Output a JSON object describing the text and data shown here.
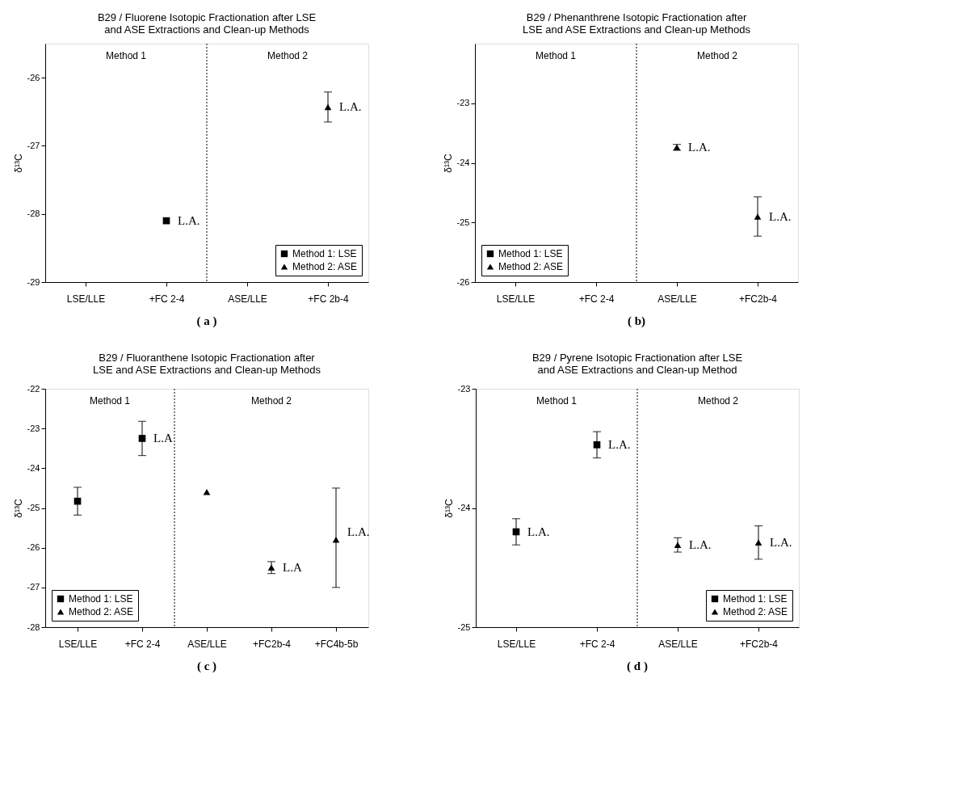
{
  "chart_data": [
    {
      "type": "scatter",
      "title": "B29 / Fluorene Isotopic Fractionation after LSE\nand ASE Extractions and Clean-up Methods",
      "ylabel": "δ¹³C",
      "categories": [
        "LSE/LLE",
        "+FC 2-4",
        "ASE/LLE",
        "+FC 2b-4"
      ],
      "ylim": [
        -29,
        -25.5
      ],
      "yticks": [
        -29,
        -28,
        -27,
        -26
      ],
      "grid": false,
      "legend": "bottom right",
      "series": [
        {
          "name": "Method 1: LSE",
          "color": "#000000",
          "marker": "square",
          "values": [
            null,
            -28.1,
            null,
            null
          ],
          "errors": [
            null,
            null,
            null,
            null
          ]
        },
        {
          "name": "Method 2: ASE",
          "color": "#000000",
          "marker": "triangle",
          "values": [
            null,
            null,
            null,
            -26.43
          ],
          "errors": [
            null,
            null,
            null,
            0.22
          ]
        }
      ],
      "annotations": [
        "Method 1",
        "Method 2",
        {
          "text": "L.A.",
          "x": "+FC 2-4",
          "y": -28.1
        },
        {
          "text": "L.A.",
          "x": "+FC 2b-4",
          "y": -26.43
        },
        "( a )"
      ]
    },
    {
      "type": "scatter",
      "title": "B29 /  Phenanthrene Isotopic Fractionation after\nLSE and ASE Extractions and Clean-up Methods",
      "ylabel": "δ¹³C",
      "categories": [
        "LSE/LLE",
        "+FC 2-4",
        "ASE/LLE",
        "+FC2b-4"
      ],
      "ylim": [
        -26,
        -22
      ],
      "yticks": [
        -26,
        -25,
        -24,
        -23
      ],
      "grid": false,
      "legend": "bottom left",
      "series": [
        {
          "name": "Method 1: LSE",
          "color": "#000000",
          "marker": "square",
          "values": [
            null,
            null,
            null,
            null
          ],
          "errors": [
            null,
            null,
            null,
            null
          ]
        },
        {
          "name": "Method 2: ASE",
          "color": "#000000",
          "marker": "triangle",
          "values": [
            null,
            null,
            -23.74,
            -24.9
          ],
          "errors": [
            null,
            null,
            0.05,
            0.33
          ]
        }
      ],
      "annotations": [
        "Method 1",
        "Method 2",
        {
          "text": "L.A.",
          "x": "ASE/LLE",
          "y": -23.74
        },
        {
          "text": "L.A.",
          "x": "+FC2b-4",
          "y": -24.9
        },
        "( b)"
      ]
    },
    {
      "type": "scatter",
      "title": "B29 / Fluoranthene Isotopic Fractionation after\nLSE and ASE Extractions and Clean-up Methods",
      "ylabel": "δ¹³C",
      "categories": [
        "LSE/LLE",
        "+FC 2-4",
        "ASE/LLE",
        "+FC2b-4",
        "+FC4b-5b"
      ],
      "ylim": [
        -28,
        -22
      ],
      "yticks": [
        -28,
        -27,
        -26,
        -25,
        -24,
        -23,
        -22
      ],
      "grid": false,
      "legend": "bottom left",
      "series": [
        {
          "name": "Method 1: LSE",
          "color": "#000000",
          "marker": "square",
          "values": [
            -24.83,
            -23.25,
            null,
            null,
            null
          ],
          "errors": [
            0.35,
            0.43,
            null,
            null,
            null
          ]
        },
        {
          "name": "Method 2: ASE",
          "color": "#000000",
          "marker": "triangle",
          "values": [
            null,
            null,
            -24.6,
            -26.5,
            -25.8
          ],
          "errors": [
            null,
            null,
            null,
            0.15,
            [
              -27.0,
              -24.5
            ]
          ]
        }
      ],
      "annotations": [
        "Method 1",
        "Method 2",
        {
          "text": "L.A",
          "x": "+FC 2-4",
          "y": -23.25
        },
        {
          "text": "L.A",
          "x": "+FC2b-4",
          "y": -26.5
        },
        {
          "text": "L.A.",
          "x": "+FC4b-5b",
          "y": -25.6
        },
        "( c )"
      ]
    },
    {
      "type": "scatter",
      "title": "B29 / Pyrene Isotopic Fractionation after LSE\nand ASE Extractions and Clean-up Method",
      "ylabel": "δ¹³C",
      "categories": [
        "LSE/LLE",
        "+FC 2-4",
        "ASE/LLE",
        "+FC2b-4"
      ],
      "ylim": [
        -25,
        -23
      ],
      "yticks": [
        -25,
        -24,
        -23
      ],
      "grid": false,
      "legend": "bottom right",
      "series": [
        {
          "name": "Method 1: LSE",
          "color": "#000000",
          "marker": "square",
          "values": [
            -24.2,
            -23.47,
            null,
            null
          ],
          "errors": [
            0.11,
            0.11,
            null,
            null
          ]
        },
        {
          "name": "Method 2: ASE",
          "color": "#000000",
          "marker": "triangle",
          "values": [
            null,
            null,
            -24.31,
            -24.29
          ],
          "errors": [
            null,
            null,
            0.06,
            0.14
          ]
        }
      ],
      "annotations": [
        "Method 1",
        "Method 2",
        {
          "text": "L.A.",
          "x": "LSE/LLE",
          "y": -24.2
        },
        {
          "text": "L.A.",
          "x": "+FC 2-4",
          "y": -23.47
        },
        {
          "text": "L.A.",
          "x": "ASE/LLE",
          "y": -24.31
        },
        {
          "text": "L.A.",
          "x": "+FC2b-4",
          "y": -24.29
        },
        "( d )"
      ]
    }
  ]
}
